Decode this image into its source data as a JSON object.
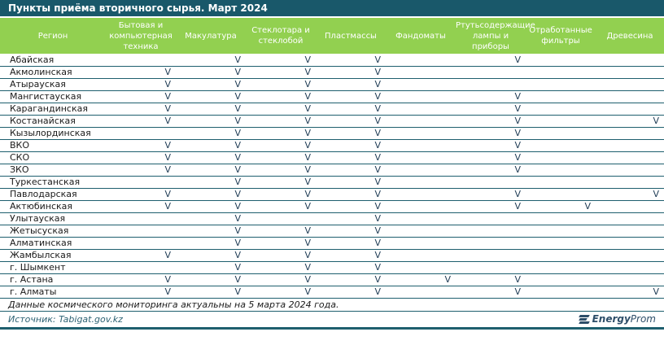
{
  "title": "Пункты приёма вторичного сырья. Март 2024",
  "table": {
    "region_header": "Регион",
    "columns": [
      "Бытовая и компьютерная техника",
      "Макулатура",
      "Стеклотара и стеклобой",
      "Пластмассы",
      "Фандоматы",
      "Ртутьсодержащие лампы и приборы",
      "Отработанные фильтры",
      "Древесина"
    ],
    "rows": [
      {
        "region": "Абайская",
        "marks": [
          "",
          "V",
          "V",
          "V",
          "",
          "V",
          "",
          ""
        ]
      },
      {
        "region": "Акмолинская",
        "marks": [
          "V",
          "V",
          "V",
          "V",
          "",
          "",
          "",
          ""
        ]
      },
      {
        "region": "Атырауская",
        "marks": [
          "V",
          "V",
          "V",
          "V",
          "",
          "",
          "",
          ""
        ]
      },
      {
        "region": "Мангистауская",
        "marks": [
          "V",
          "V",
          "V",
          "V",
          "",
          "V",
          "",
          ""
        ]
      },
      {
        "region": "Карагандинская",
        "marks": [
          "V",
          "V",
          "V",
          "V",
          "",
          "V",
          "",
          ""
        ]
      },
      {
        "region": "Костанайская",
        "marks": [
          "V",
          "V",
          "V",
          "V",
          "",
          "V",
          "",
          "V"
        ]
      },
      {
        "region": "Кызылординская",
        "marks": [
          "",
          "V",
          "V",
          "V",
          "",
          "V",
          "",
          ""
        ]
      },
      {
        "region": "ВКО",
        "marks": [
          "V",
          "V",
          "V",
          "V",
          "",
          "V",
          "",
          ""
        ]
      },
      {
        "region": "СКО",
        "marks": [
          "V",
          "V",
          "V",
          "V",
          "",
          "V",
          "",
          ""
        ]
      },
      {
        "region": "ЗКО",
        "marks": [
          "V",
          "V",
          "V",
          "V",
          "",
          "V",
          "",
          ""
        ]
      },
      {
        "region": "Туркестанская",
        "marks": [
          "",
          "V",
          "V",
          "V",
          "",
          "",
          "",
          ""
        ]
      },
      {
        "region": "Павлодарская",
        "marks": [
          "V",
          "V",
          "V",
          "V",
          "",
          "V",
          "",
          "V"
        ]
      },
      {
        "region": "Актюбинская",
        "marks": [
          "V",
          "V",
          "V",
          "V",
          "",
          "V",
          "V",
          ""
        ]
      },
      {
        "region": "Улытауская",
        "marks": [
          "",
          "V",
          "",
          "V",
          "",
          "",
          "",
          ""
        ]
      },
      {
        "region": "Жетысуская",
        "marks": [
          "",
          "V",
          "V",
          "V",
          "",
          "",
          "",
          ""
        ]
      },
      {
        "region": "Алматинская",
        "marks": [
          "",
          "V",
          "V",
          "V",
          "",
          "",
          "",
          ""
        ]
      },
      {
        "region": "Жамбылская",
        "marks": [
          "V",
          "V",
          "V",
          "V",
          "",
          "",
          "",
          ""
        ]
      },
      {
        "region": "г. Шымкент",
        "marks": [
          "",
          "V",
          "V",
          "V",
          "",
          "",
          "",
          ""
        ]
      },
      {
        "region": "г. Астана",
        "marks": [
          "V",
          "V",
          "V",
          "V",
          "V",
          "V",
          "",
          ""
        ]
      },
      {
        "region": "г. Алматы",
        "marks": [
          "V",
          "V",
          "V",
          "V",
          "",
          "V",
          "",
          "V"
        ]
      }
    ]
  },
  "footer": {
    "note": "Данные космического мониторинга актуальны на 5 марта 2024 года.",
    "source_label": "Источник: ",
    "source_link": "Tabigat.gov.kz",
    "logo_energy": "Energy",
    "logo_prom": "Prom"
  },
  "colors": {
    "title_bar_teal": "#19586A",
    "header_green": "#92D050",
    "separator_teal": "#1E5F6E",
    "check_mark": "#1F3C55",
    "body_text": "#1A1A1A",
    "source_text": "#2C6173",
    "logo_navy": "#2E4E69"
  }
}
